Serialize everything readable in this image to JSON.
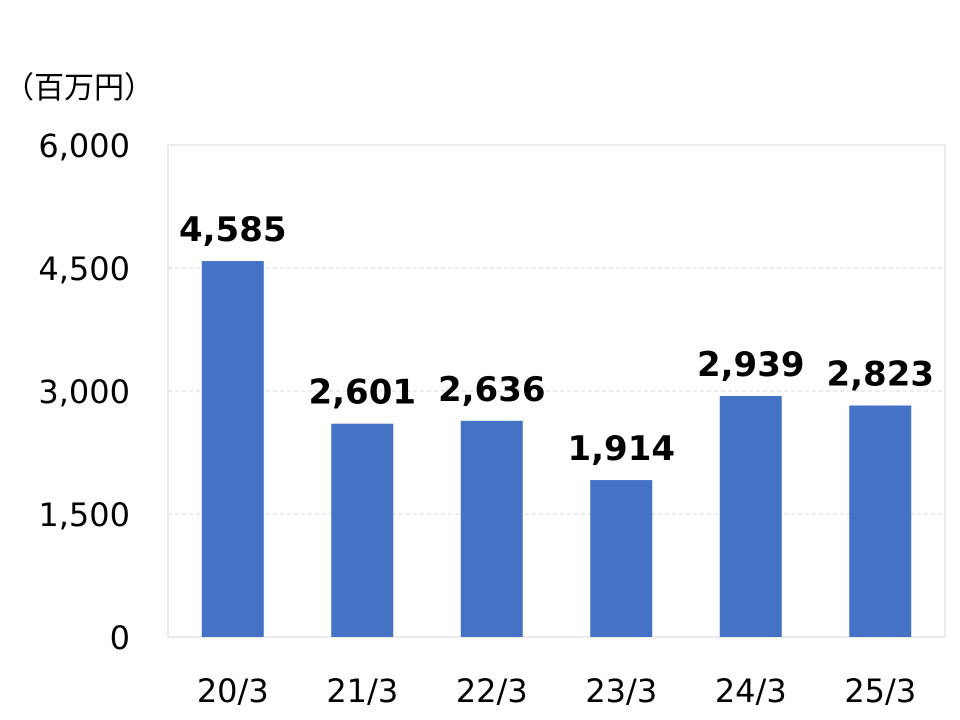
{
  "chart_data": {
    "type": "bar",
    "unit_label": "（百万円）",
    "categories": [
      "20/3",
      "21/3",
      "22/3",
      "23/3",
      "24/3",
      "25/3"
    ],
    "values": [
      4585,
      2601,
      2636,
      1914,
      2939,
      2823
    ],
    "value_labels": [
      "4,585",
      "2,601",
      "2,636",
      "1,914",
      "2,939",
      "2,823"
    ],
    "yticks": [
      0,
      1500,
      3000,
      4500,
      6000
    ],
    "ytick_labels": [
      "0",
      "1,500",
      "3,000",
      "4,500",
      "6,000"
    ],
    "ylim": [
      0,
      6000
    ],
    "grid": true,
    "bar_color": "#4472C4"
  }
}
